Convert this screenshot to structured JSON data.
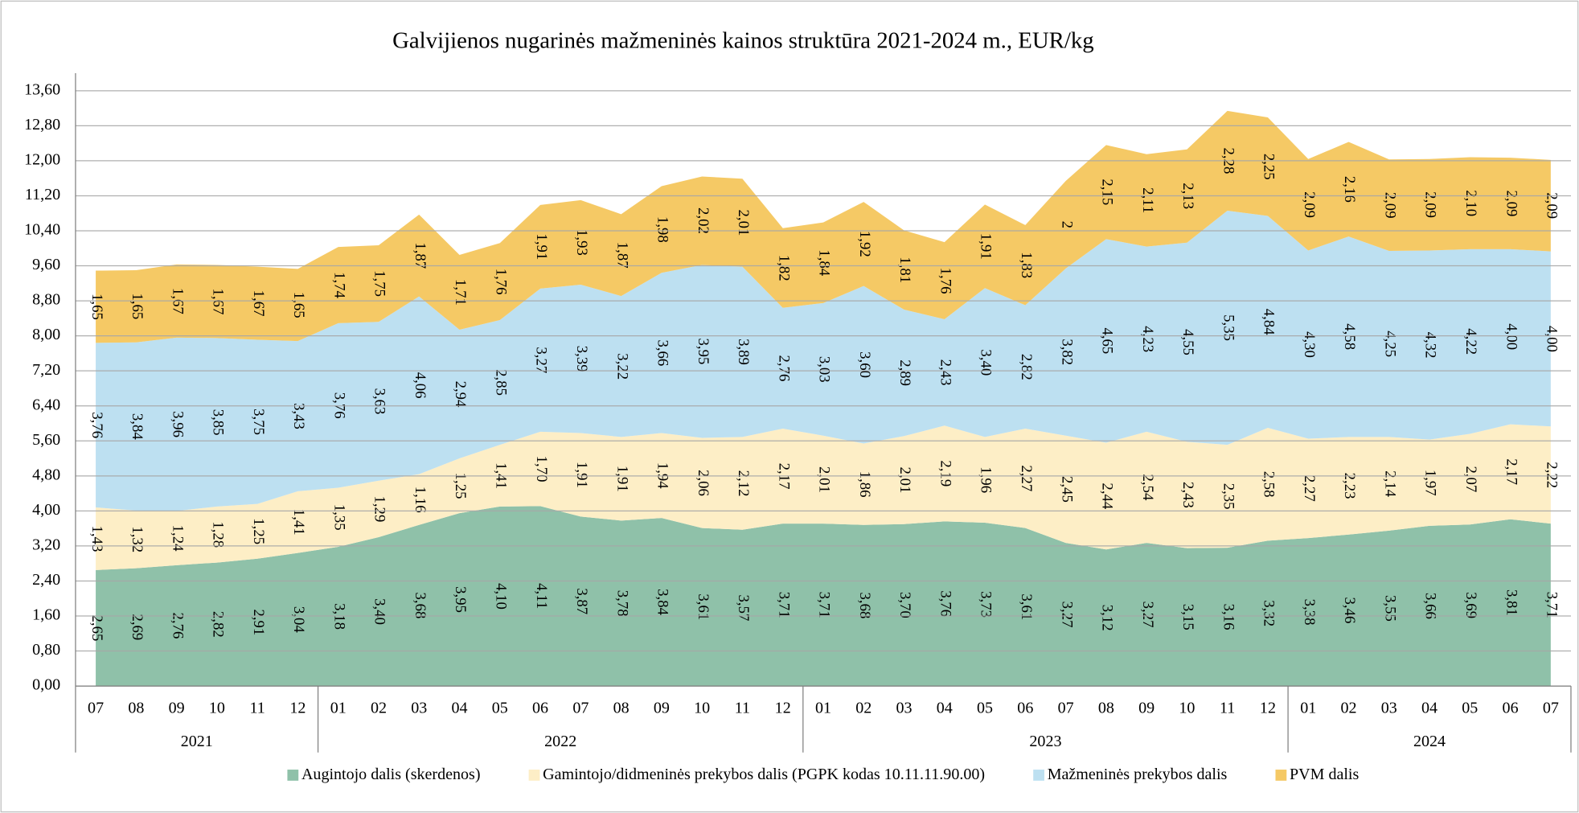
{
  "chart_data": {
    "type": "stacked-area",
    "title": "Galvijienos nugarinės mažmeninės kainos struktūra 2021-2024 m., EUR/kg",
    "categories": [
      "07",
      "08",
      "09",
      "10",
      "11",
      "12",
      "01",
      "02",
      "03",
      "04",
      "05",
      "06",
      "07",
      "08",
      "09",
      "10",
      "11",
      "12",
      "01",
      "02",
      "03",
      "04",
      "05",
      "06",
      "07",
      "08",
      "09",
      "10",
      "11",
      "12",
      "01",
      "02",
      "03",
      "04",
      "05",
      "06",
      "07"
    ],
    "category_years": [
      "2021",
      "2021",
      "2021",
      "2021",
      "2021",
      "2021",
      "2022",
      "2022",
      "2022",
      "2022",
      "2022",
      "2022",
      "2022",
      "2022",
      "2022",
      "2022",
      "2022",
      "2022",
      "2023",
      "2023",
      "2023",
      "2023",
      "2023",
      "2023",
      "2023",
      "2023",
      "2023",
      "2023",
      "2023",
      "2023",
      "2024",
      "2024",
      "2024",
      "2024",
      "2024",
      "2024",
      "2024"
    ],
    "series": [
      {
        "name": "Augintojo dalis (skerdenos)",
        "color": "#8fc1a9",
        "values": [
          2.65,
          2.69,
          2.76,
          2.82,
          2.91,
          3.04,
          3.18,
          3.4,
          3.68,
          3.95,
          4.1,
          4.11,
          3.87,
          3.78,
          3.84,
          3.61,
          3.57,
          3.71,
          3.71,
          3.68,
          3.7,
          3.76,
          3.73,
          3.61,
          3.27,
          3.12,
          3.27,
          3.15,
          3.16,
          3.32,
          3.38,
          3.46,
          3.55,
          3.66,
          3.69,
          3.81,
          3.71
        ],
        "value_labels": [
          "2,65",
          "2,69",
          "2,76",
          "2,82",
          "2,91",
          "3,04",
          "3,18",
          "3,40",
          "3,68",
          "3,95",
          "4,10",
          "4,11",
          "3,87",
          "3,78",
          "3,84",
          "3,61",
          "3,57",
          "3,71",
          "3,71",
          "3,68",
          "3,70",
          "3,76",
          "3,73",
          "3,61",
          "3,27",
          "3,12",
          "3,27",
          "3,15",
          "3,16",
          "3,32",
          "3,38",
          "3,46",
          "3,55",
          "3,66",
          "3,69",
          "3,81",
          "3,71"
        ]
      },
      {
        "name": "Gamintojo/didmeninės prekybos dalis (PGPK kodas 10.11.11.90.00)",
        "color": "#fdeec6",
        "values": [
          1.43,
          1.32,
          1.24,
          1.28,
          1.25,
          1.41,
          1.35,
          1.29,
          1.16,
          1.25,
          1.41,
          1.7,
          1.91,
          1.91,
          1.94,
          2.06,
          2.12,
          2.17,
          2.01,
          1.86,
          2.01,
          2.19,
          1.96,
          2.27,
          2.45,
          2.44,
          2.54,
          2.43,
          2.35,
          2.58,
          2.27,
          2.23,
          2.14,
          1.97,
          2.07,
          2.17,
          2.22
        ],
        "value_labels": [
          "1,43",
          "1,32",
          "1,24",
          "1,28",
          "1,25",
          "1,41",
          "1,35",
          "1,29",
          "1,16",
          "1,25",
          "1,41",
          "1,70",
          "1,91",
          "1,91",
          "1,94",
          "2,06",
          "2,12",
          "2,17",
          "2,01",
          "1,86",
          "2,01",
          "2,19",
          "1,96",
          "2,27",
          "2,45",
          "2,44",
          "2,54",
          "2,43",
          "2,35",
          "2,58",
          "2,27",
          "2,23",
          "2,14",
          "1,97",
          "2,07",
          "2,17",
          "2,22"
        ]
      },
      {
        "name": "Mažmeninės prekybos dalis",
        "color": "#bde0f1",
        "values": [
          3.76,
          3.84,
          3.96,
          3.85,
          3.75,
          3.43,
          3.76,
          3.63,
          4.06,
          2.94,
          2.85,
          3.27,
          3.39,
          3.22,
          3.66,
          3.95,
          3.89,
          2.76,
          3.03,
          3.6,
          2.89,
          2.43,
          3.4,
          2.82,
          3.82,
          4.65,
          4.23,
          4.55,
          5.35,
          4.84,
          4.3,
          4.58,
          4.25,
          4.32,
          4.22,
          4.0,
          4.0
        ],
        "value_labels": [
          "3,76",
          "3,84",
          "3,96",
          "3,85",
          "3,75",
          "3,43",
          "3,76",
          "3,63",
          "4,06",
          "2,94",
          "2,85",
          "3,27",
          "3,39",
          "3,22",
          "3,66",
          "3,95",
          "3,89",
          "2,76",
          "3,03",
          "3,60",
          "2,89",
          "2,43",
          "3,40",
          "2,82",
          "3,82",
          "4,65",
          "4,23",
          "4,55",
          "5,35",
          "4,84",
          "4,30",
          "4,58",
          "4,25",
          "4,32",
          "4,22",
          "4,00",
          "4,00"
        ]
      },
      {
        "name": "PVM dalis",
        "color": "#f5c965",
        "values": [
          1.65,
          1.65,
          1.67,
          1.67,
          1.67,
          1.65,
          1.74,
          1.75,
          1.87,
          1.71,
          1.76,
          1.91,
          1.93,
          1.87,
          1.98,
          2.02,
          2.01,
          1.82,
          1.84,
          1.92,
          1.81,
          1.76,
          1.91,
          1.83,
          2,
          2.15,
          2.11,
          2.13,
          2.28,
          2.25,
          2.09,
          2.16,
          2.09,
          2.09,
          2.1,
          2.09,
          2.09
        ],
        "value_labels": [
          "1,65",
          "1,65",
          "1,67",
          "1,67",
          "1,67",
          "1,65",
          "1,74",
          "1,75",
          "1,87",
          "1,71",
          "1,76",
          "1,91",
          "1,93",
          "1,87",
          "1,98",
          "2,02",
          "2,01",
          "1,82",
          "1,84",
          "1,92",
          "1,81",
          "1,76",
          "1,91",
          "1,83",
          "2",
          "2,15",
          "2,11",
          "2,13",
          "2,28",
          "2,25",
          "2,09",
          "2,16",
          "2,09",
          "2,09",
          "2,10",
          "2,09",
          "2,09"
        ]
      }
    ],
    "ylim": [
      0,
      14
    ],
    "yticks": [
      {
        "value": 0,
        "label": "0,00"
      },
      {
        "value": 0.8,
        "label": "0,80"
      },
      {
        "value": 1.6,
        "label": "1,60"
      },
      {
        "value": 2.4,
        "label": "2,40"
      },
      {
        "value": 3.2,
        "label": "3,20"
      },
      {
        "value": 4.0,
        "label": "4,00"
      },
      {
        "value": 4.8,
        "label": "4,80"
      },
      {
        "value": 5.6,
        "label": "5,60"
      },
      {
        "value": 6.4,
        "label": "6,40"
      },
      {
        "value": 7.2,
        "label": "7,20"
      },
      {
        "value": 8.0,
        "label": "8,00"
      },
      {
        "value": 8.8,
        "label": "8,80"
      },
      {
        "value": 9.6,
        "label": "9,60"
      },
      {
        "value": 10.4,
        "label": "10,40"
      },
      {
        "value": 11.2,
        "label": "11,20"
      },
      {
        "value": 12.0,
        "label": "12,00"
      },
      {
        "value": 12.8,
        "label": "12,80"
      },
      {
        "value": 13.6,
        "label": "13,60"
      }
    ],
    "grid": true,
    "legend": "bottom"
  }
}
